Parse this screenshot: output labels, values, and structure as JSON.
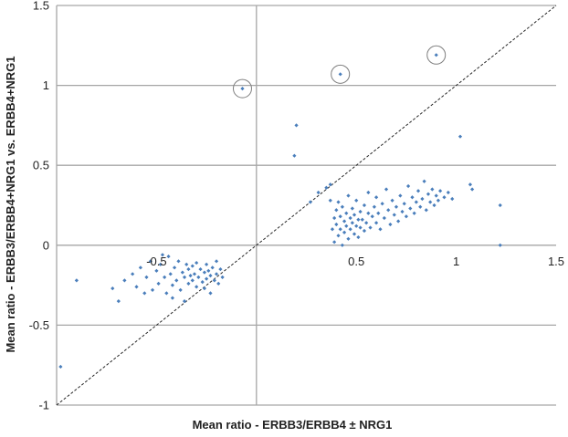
{
  "chart_data": {
    "type": "scatter",
    "title": "",
    "xlabel": "Mean ratio - ERBB3/ERBB4 ± NRG1",
    "ylabel": "Mean ratio - ERBB3/ERBB4+NRG1 vs. ERBB4+NRG1",
    "xlim": [
      -1,
      1.5
    ],
    "ylim": [
      -1,
      1.5
    ],
    "x_tick_labels": [
      "-0.5",
      "0.5",
      "1",
      "1.5"
    ],
    "y_tick_labels": [
      "1.5",
      "1",
      "0.5",
      "0",
      "-0.5",
      "-1"
    ],
    "grid": "horizontal",
    "reference_line": {
      "style": "dashed",
      "from": [
        -1,
        -1
      ],
      "to": [
        1.5,
        1.5
      ]
    },
    "marker_color": "#4a7ebb",
    "highlighted_points": [
      {
        "x": -0.07,
        "y": 0.98
      },
      {
        "x": 0.42,
        "y": 1.07
      },
      {
        "x": 0.9,
        "y": 1.19
      }
    ],
    "series": [
      {
        "points": [
          [
            -0.98,
            -0.76
          ],
          [
            -0.9,
            -0.22
          ],
          [
            -0.72,
            -0.27
          ],
          [
            -0.69,
            -0.35
          ],
          [
            -0.66,
            -0.22
          ],
          [
            -0.62,
            -0.18
          ],
          [
            -0.6,
            -0.26
          ],
          [
            -0.58,
            -0.14
          ],
          [
            -0.56,
            -0.3
          ],
          [
            -0.55,
            -0.2
          ],
          [
            -0.53,
            -0.1
          ],
          [
            -0.52,
            -0.28
          ],
          [
            -0.5,
            -0.16
          ],
          [
            -0.49,
            -0.24
          ],
          [
            -0.48,
            -0.12
          ],
          [
            -0.46,
            -0.2
          ],
          [
            -0.45,
            -0.3
          ],
          [
            -0.44,
            -0.07
          ],
          [
            -0.43,
            -0.18
          ],
          [
            -0.42,
            -0.25
          ],
          [
            -0.41,
            -0.14
          ],
          [
            -0.4,
            -0.22
          ],
          [
            -0.39,
            -0.1
          ],
          [
            -0.38,
            -0.28
          ],
          [
            -0.37,
            -0.17
          ],
          [
            -0.36,
            -0.2
          ],
          [
            -0.35,
            -0.12
          ],
          [
            -0.34,
            -0.24
          ],
          [
            -0.34,
            -0.15
          ],
          [
            -0.33,
            -0.19
          ],
          [
            -0.32,
            -0.22
          ],
          [
            -0.32,
            -0.13
          ],
          [
            -0.31,
            -0.18
          ],
          [
            -0.3,
            -0.26
          ],
          [
            -0.3,
            -0.11
          ],
          [
            -0.29,
            -0.2
          ],
          [
            -0.28,
            -0.15
          ],
          [
            -0.27,
            -0.23
          ],
          [
            -0.26,
            -0.17
          ],
          [
            -0.25,
            -0.12
          ],
          [
            -0.25,
            -0.21
          ],
          [
            -0.24,
            -0.16
          ],
          [
            -0.23,
            -0.19
          ],
          [
            -0.22,
            -0.14
          ],
          [
            -0.21,
            -0.22
          ],
          [
            -0.2,
            -0.18
          ],
          [
            -0.2,
            -0.1
          ],
          [
            -0.19,
            -0.24
          ],
          [
            -0.18,
            -0.15
          ],
          [
            -0.17,
            -0.2
          ],
          [
            -0.36,
            -0.35
          ],
          [
            -0.42,
            -0.33
          ],
          [
            -0.47,
            -0.06
          ],
          [
            -0.26,
            -0.27
          ],
          [
            -0.23,
            -0.3
          ],
          [
            0.19,
            0.56
          ],
          [
            0.2,
            0.75
          ],
          [
            0.27,
            0.27
          ],
          [
            0.31,
            0.33
          ],
          [
            0.35,
            0.36
          ],
          [
            0.37,
            0.38
          ],
          [
            0.37,
            0.28
          ],
          [
            0.38,
            0.1
          ],
          [
            0.39,
            0.17
          ],
          [
            0.39,
            0.02
          ],
          [
            0.4,
            0.22
          ],
          [
            0.4,
            0.13
          ],
          [
            0.41,
            0.06
          ],
          [
            0.41,
            0.27
          ],
          [
            0.42,
            0.18
          ],
          [
            0.42,
            0.1
          ],
          [
            0.43,
            0.0
          ],
          [
            0.43,
            0.24
          ],
          [
            0.44,
            0.15
          ],
          [
            0.44,
            0.08
          ],
          [
            0.45,
            0.2
          ],
          [
            0.45,
            0.12
          ],
          [
            0.46,
            0.31
          ],
          [
            0.46,
            0.04
          ],
          [
            0.47,
            0.17
          ],
          [
            0.47,
            0.1
          ],
          [
            0.48,
            0.23
          ],
          [
            0.48,
            0.14
          ],
          [
            0.49,
            0.07
          ],
          [
            0.49,
            0.19
          ],
          [
            0.5,
            0.12
          ],
          [
            0.5,
            0.28
          ],
          [
            0.51,
            0.16
          ],
          [
            0.51,
            0.05
          ],
          [
            0.52,
            0.21
          ],
          [
            0.52,
            0.11
          ],
          [
            0.53,
            0.16
          ],
          [
            0.54,
            0.25
          ],
          [
            0.54,
            0.09
          ],
          [
            0.55,
            0.14
          ],
          [
            0.56,
            0.2
          ],
          [
            0.56,
            0.33
          ],
          [
            0.57,
            0.11
          ],
          [
            0.58,
            0.18
          ],
          [
            0.59,
            0.24
          ],
          [
            0.6,
            0.14
          ],
          [
            0.6,
            0.3
          ],
          [
            0.61,
            0.2
          ],
          [
            0.62,
            0.1
          ],
          [
            0.63,
            0.26
          ],
          [
            0.64,
            0.17
          ],
          [
            0.65,
            0.35
          ],
          [
            0.66,
            0.22
          ],
          [
            0.67,
            0.13
          ],
          [
            0.68,
            0.28
          ],
          [
            0.69,
            0.19
          ],
          [
            0.7,
            0.24
          ],
          [
            0.71,
            0.15
          ],
          [
            0.72,
            0.31
          ],
          [
            0.73,
            0.21
          ],
          [
            0.74,
            0.26
          ],
          [
            0.75,
            0.18
          ],
          [
            0.76,
            0.37
          ],
          [
            0.77,
            0.23
          ],
          [
            0.78,
            0.3
          ],
          [
            0.79,
            0.2
          ],
          [
            0.8,
            0.27
          ],
          [
            0.81,
            0.34
          ],
          [
            0.82,
            0.24
          ],
          [
            0.83,
            0.29
          ],
          [
            0.84,
            0.4
          ],
          [
            0.85,
            0.22
          ],
          [
            0.86,
            0.32
          ],
          [
            0.87,
            0.27
          ],
          [
            0.88,
            0.35
          ],
          [
            0.89,
            0.25
          ],
          [
            0.9,
            0.31
          ],
          [
            0.91,
            0.28
          ],
          [
            0.92,
            0.34
          ],
          [
            0.94,
            0.3
          ],
          [
            0.96,
            0.33
          ],
          [
            0.98,
            0.29
          ],
          [
            1.02,
            0.68
          ],
          [
            1.07,
            0.38
          ],
          [
            1.08,
            0.35
          ],
          [
            1.22,
            0.25
          ],
          [
            1.22,
            0.0
          ]
        ]
      }
    ]
  }
}
